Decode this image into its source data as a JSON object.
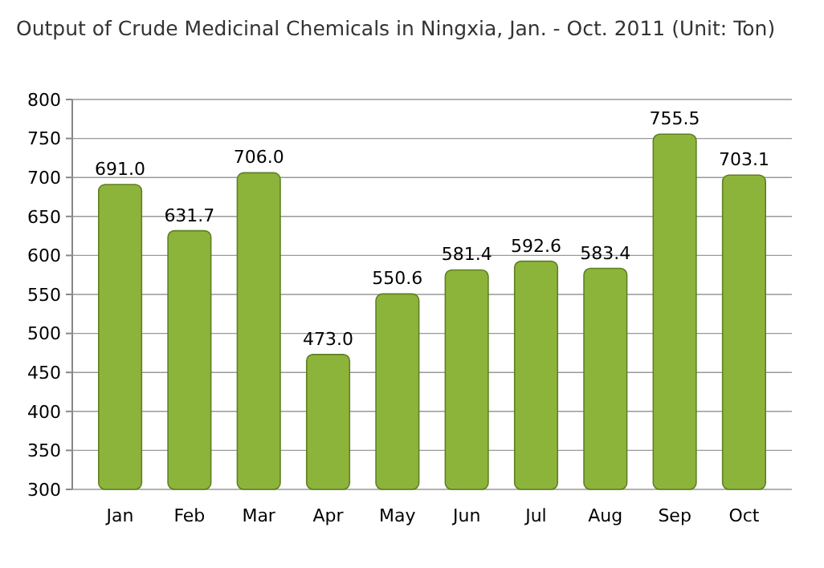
{
  "chart_data": {
    "type": "bar",
    "title": "Output of Crude Medicinal Chemicals in Ningxia, Jan. - Oct. 2011 (Unit: Ton)",
    "categories": [
      "Jan",
      "Feb",
      "Mar",
      "Apr",
      "May",
      "Jun",
      "Jul",
      "Aug",
      "Sep",
      "Oct"
    ],
    "values": [
      691.0,
      631.7,
      706.0,
      473.0,
      550.6,
      581.4,
      592.6,
      583.4,
      755.5,
      703.1
    ],
    "value_labels": [
      "691.0",
      "631.7",
      "706.0",
      "473.0",
      "550.6",
      "581.4",
      "592.6",
      "583.4",
      "755.5",
      "703.1"
    ],
    "color": "#8db43a",
    "ylim": [
      300,
      800
    ],
    "yticks": [
      300,
      350,
      400,
      450,
      500,
      550,
      600,
      650,
      700,
      750,
      800
    ],
    "grid": "y"
  }
}
